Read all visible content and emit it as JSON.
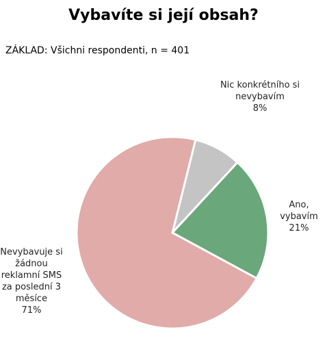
{
  "chart_data": {
    "type": "pie",
    "title": "Vybavíte si její obsah?",
    "subtitle": "ZÁKLAD: Všichni respondenti, n = 401",
    "categories": [
      "Nic konkrétního si nevybavím",
      "Ano, vybavím",
      "Nevybavuje si žádnou reklamní SMS za poslední 3 měsíce"
    ],
    "values": [
      8,
      21,
      71
    ],
    "value_labels": [
      "8%",
      "21%",
      "71%"
    ],
    "colors": [
      "#c4c4c4",
      "#6aa77a",
      "#e0aba9"
    ]
  }
}
